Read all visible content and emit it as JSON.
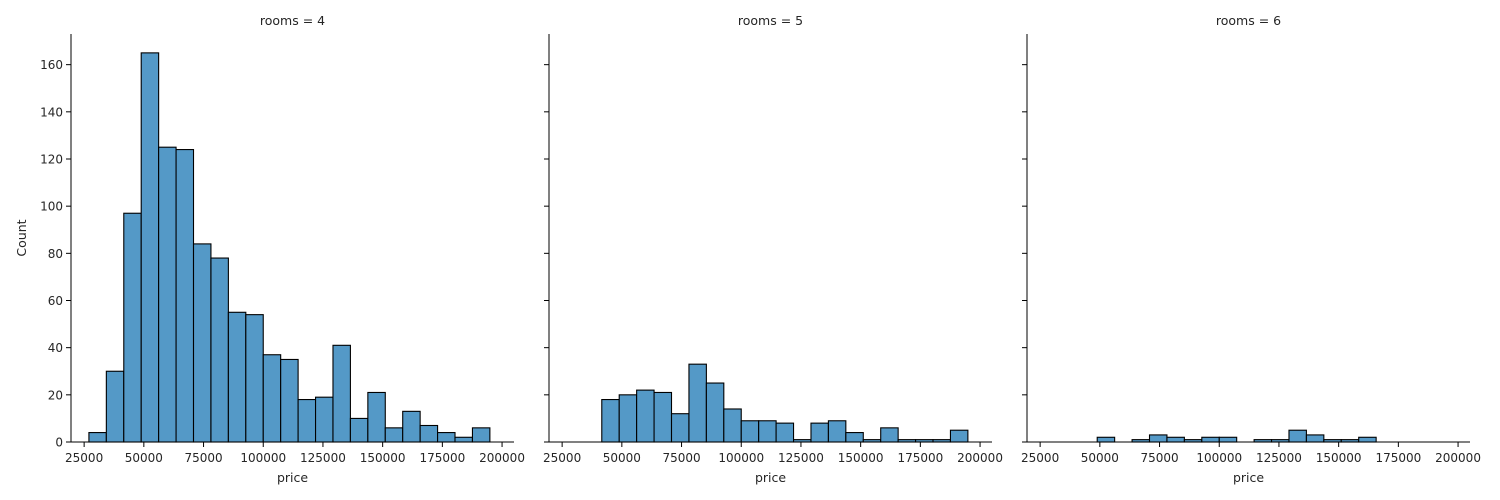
{
  "chart_data": {
    "type": "bar",
    "ylabel": "Count",
    "bar_color": "#5499c7",
    "edge_color": "#000000",
    "grid": false,
    "y_ticks": [
      0,
      20,
      40,
      60,
      80,
      100,
      120,
      140,
      160
    ],
    "x_ticks": [
      25000,
      50000,
      75000,
      100000,
      125000,
      150000,
      175000,
      200000
    ],
    "x_range": [
      19500,
      205000
    ],
    "y_range": [
      0,
      173
    ],
    "bin_edges": [
      27000,
      34300,
      41600,
      48900,
      56200,
      63500,
      70800,
      78100,
      85400,
      92700,
      100000,
      107300,
      114600,
      121900,
      129200,
      136500,
      143800,
      151100,
      158400,
      165700,
      173000,
      180300,
      187600,
      194900
    ],
    "facets": [
      {
        "title": "rooms = 4",
        "xlabel": "price",
        "values": [
          4,
          30,
          97,
          165,
          125,
          124,
          84,
          78,
          55,
          54,
          37,
          35,
          18,
          19,
          41,
          10,
          21,
          6,
          13,
          7,
          4,
          2,
          6
        ]
      },
      {
        "title": "rooms = 5",
        "xlabel": "price",
        "values": [
          0,
          0,
          18,
          20,
          22,
          21,
          12,
          33,
          25,
          14,
          9,
          9,
          8,
          1,
          8,
          9,
          4,
          1,
          6,
          1,
          1,
          1,
          5
        ]
      },
      {
        "title": "rooms = 6",
        "xlabel": "price",
        "values": [
          0,
          0,
          0,
          2,
          0,
          1,
          3,
          2,
          1,
          2,
          2,
          0,
          1,
          1,
          5,
          3,
          1,
          1,
          2,
          0,
          0,
          0,
          0
        ]
      }
    ]
  }
}
